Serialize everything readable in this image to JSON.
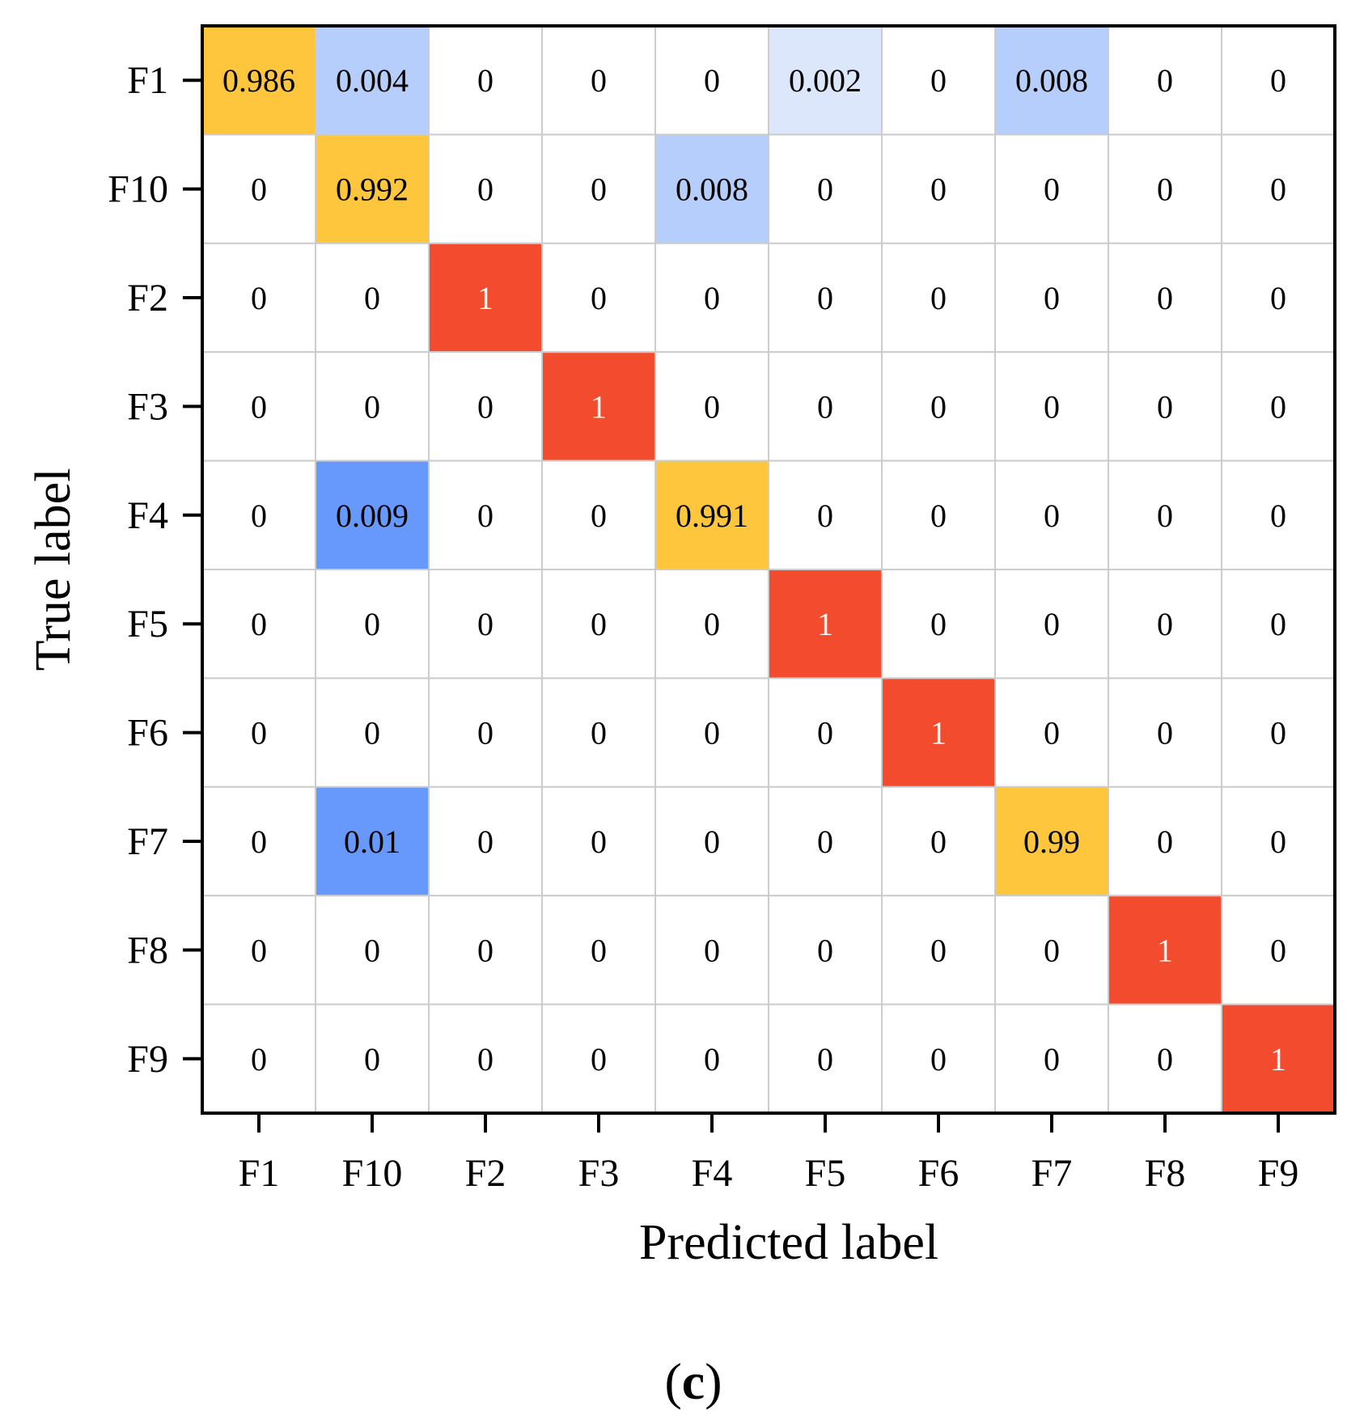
{
  "chart_data": {
    "type": "heatmap",
    "title": "",
    "xlabel": "Predicted label",
    "ylabel": "True label",
    "x_categories": [
      "F1",
      "F10",
      "F2",
      "F3",
      "F4",
      "F5",
      "F6",
      "F7",
      "F8",
      "F9"
    ],
    "y_categories": [
      "F1",
      "F10",
      "F2",
      "F3",
      "F4",
      "F5",
      "F6",
      "F7",
      "F8",
      "F9"
    ],
    "values": [
      [
        0.986,
        0.004,
        0,
        0,
        0,
        0.002,
        0,
        0.008,
        0,
        0
      ],
      [
        0,
        0.992,
        0,
        0,
        0.008,
        0,
        0,
        0,
        0,
        0
      ],
      [
        0,
        0,
        1,
        0,
        0,
        0,
        0,
        0,
        0,
        0
      ],
      [
        0,
        0,
        0,
        1,
        0,
        0,
        0,
        0,
        0,
        0
      ],
      [
        0,
        0.009,
        0,
        0,
        0.991,
        0,
        0,
        0,
        0,
        0
      ],
      [
        0,
        0,
        0,
        0,
        0,
        1,
        0,
        0,
        0,
        0
      ],
      [
        0,
        0,
        0,
        0,
        0,
        0,
        1,
        0,
        0,
        0
      ],
      [
        0,
        0.01,
        0,
        0,
        0,
        0,
        0,
        0.99,
        0,
        0
      ],
      [
        0,
        0,
        0,
        0,
        0,
        0,
        0,
        0,
        1,
        0
      ],
      [
        0,
        0,
        0,
        0,
        0,
        0,
        0,
        0,
        0,
        1
      ]
    ],
    "cell_labels": [
      [
        "0.986",
        "0.004",
        "0",
        "0",
        "0",
        "0.002",
        "0",
        "0.008",
        "0",
        "0"
      ],
      [
        "0",
        "0.992",
        "0",
        "0",
        "0.008",
        "0",
        "0",
        "0",
        "0",
        "0"
      ],
      [
        "0",
        "0",
        "1",
        "0",
        "0",
        "0",
        "0",
        "0",
        "0",
        "0"
      ],
      [
        "0",
        "0",
        "0",
        "1",
        "0",
        "0",
        "0",
        "0",
        "0",
        "0"
      ],
      [
        "0",
        "0.009",
        "0",
        "0",
        "0.991",
        "0",
        "0",
        "0",
        "0",
        "0"
      ],
      [
        "0",
        "0",
        "0",
        "0",
        "0",
        "1",
        "0",
        "0",
        "0",
        "0"
      ],
      [
        "0",
        "0",
        "0",
        "0",
        "0",
        "0",
        "1",
        "0",
        "0",
        "0"
      ],
      [
        "0",
        "0.01",
        "0",
        "0",
        "0",
        "0",
        "0",
        "0.99",
        "0",
        "0"
      ],
      [
        "0",
        "0",
        "0",
        "0",
        "0",
        "0",
        "0",
        "0",
        "1",
        "0"
      ],
      [
        "0",
        "0",
        "0",
        "0",
        "0",
        "0",
        "0",
        "0",
        "0",
        "1"
      ]
    ],
    "colors": {
      "perfect": "#f34b2d",
      "high": "#fec63d",
      "low_strong": "#6699fb",
      "low_mid": "#b6cefb",
      "low_light": "#dde7fc",
      "zero": "#ffffff",
      "grid": "#cccccc",
      "frame": "#000000",
      "perfect_text": "#ffffff"
    }
  },
  "caption": {
    "open": "(",
    "letter": "c",
    "close": ")"
  }
}
